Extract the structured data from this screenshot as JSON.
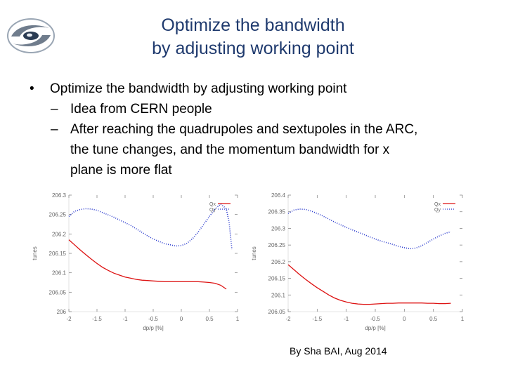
{
  "slide": {
    "title_line1": "Optimize the bandwidth",
    "title_line2": "by adjusting working point",
    "bullet_main": "Optimize the bandwidth by adjusting working point",
    "sub1": "Idea from CERN people",
    "sub2_line1": "After reaching the quadrupoles and sextupoles in the ARC,",
    "sub2_line2": "the tune changes, and the momentum bandwidth for x",
    "sub2_line3": "plane is more flat",
    "credit": "By Sha BAI, Aug 2014",
    "bullet_glyph": "•",
    "dash_glyph": "–",
    "logo_icon": "institute-logo-swirl"
  },
  "colors": {
    "title": "#1f3a6e",
    "qx": "#dd1111",
    "qy": "#2233cc",
    "axis": "#666666"
  },
  "chart_data": [
    {
      "type": "line",
      "xlabel": "dp/p [%]",
      "ylabel": "tunes",
      "xlim": [
        -2,
        1
      ],
      "ylim": [
        206,
        206.3
      ],
      "xticks": [
        "-2",
        "-1.5",
        "-1",
        "-0.5",
        "0",
        "0.5",
        "1"
      ],
      "yticks": [
        "206",
        "206.05",
        "206.1",
        "206.15",
        "206.2",
        "206.25",
        "206.3"
      ],
      "legend_position": "top-right",
      "series": [
        {
          "name": "Qx",
          "style": "solid",
          "color": "#dd1111",
          "x": [
            -2.0,
            -1.9,
            -1.8,
            -1.7,
            -1.6,
            -1.5,
            -1.4,
            -1.3,
            -1.2,
            -1.1,
            -1.0,
            -0.9,
            -0.8,
            -0.7,
            -0.6,
            -0.5,
            -0.4,
            -0.3,
            -0.2,
            -0.1,
            0.0,
            0.1,
            0.2,
            0.3,
            0.4,
            0.5,
            0.6,
            0.7,
            0.8
          ],
          "y": [
            206.185,
            206.172,
            206.159,
            206.147,
            206.135,
            206.124,
            206.114,
            206.106,
            206.099,
            206.094,
            206.089,
            206.086,
            206.083,
            206.081,
            206.08,
            206.079,
            206.078,
            206.077,
            206.077,
            206.077,
            206.077,
            206.077,
            206.077,
            206.077,
            206.076,
            206.075,
            206.073,
            206.068,
            206.058
          ]
        },
        {
          "name": "Qy",
          "style": "dotted",
          "color": "#2233cc",
          "x": [
            -2.0,
            -1.9,
            -1.8,
            -1.7,
            -1.6,
            -1.5,
            -1.4,
            -1.3,
            -1.2,
            -1.1,
            -1.0,
            -0.9,
            -0.8,
            -0.7,
            -0.6,
            -0.5,
            -0.4,
            -0.3,
            -0.2,
            -0.1,
            0.0,
            0.1,
            0.2,
            0.3,
            0.4,
            0.5,
            0.6,
            0.7,
            0.8,
            0.85,
            0.9
          ],
          "y": [
            206.245,
            206.258,
            206.263,
            206.265,
            206.264,
            206.261,
            206.255,
            206.249,
            206.243,
            206.236,
            206.229,
            206.222,
            206.213,
            206.204,
            206.195,
            206.187,
            206.181,
            206.175,
            206.172,
            206.169,
            206.17,
            206.176,
            206.188,
            206.205,
            206.225,
            206.245,
            206.264,
            206.277,
            206.265,
            206.23,
            206.16
          ]
        }
      ]
    },
    {
      "type": "line",
      "xlabel": "dp/p [%]",
      "ylabel": "tunes",
      "xlim": [
        -2,
        1
      ],
      "ylim": [
        206.05,
        206.4
      ],
      "xticks": [
        "-2",
        "-1.5",
        "-1",
        "-0.5",
        "0",
        "0.5",
        "1"
      ],
      "yticks": [
        "206.05",
        "206.1",
        "206.15",
        "206.2",
        "206.25",
        "206.3",
        "206.35",
        "206.4"
      ],
      "legend_position": "top-right",
      "series": [
        {
          "name": "Qx",
          "style": "solid",
          "color": "#dd1111",
          "x": [
            -2.0,
            -1.9,
            -1.8,
            -1.7,
            -1.6,
            -1.5,
            -1.4,
            -1.3,
            -1.2,
            -1.1,
            -1.0,
            -0.9,
            -0.8,
            -0.7,
            -0.6,
            -0.5,
            -0.4,
            -0.3,
            -0.2,
            -0.1,
            0.0,
            0.1,
            0.2,
            0.3,
            0.4,
            0.5,
            0.6,
            0.7,
            0.8
          ],
          "y": [
            206.191,
            206.176,
            206.161,
            206.147,
            206.134,
            206.122,
            206.111,
            206.1,
            206.091,
            206.084,
            206.079,
            206.075,
            206.073,
            206.072,
            206.072,
            206.073,
            206.074,
            206.075,
            206.075,
            206.076,
            206.076,
            206.076,
            206.076,
            206.076,
            206.075,
            206.075,
            206.074,
            206.074,
            206.075
          ]
        },
        {
          "name": "Qy",
          "style": "dotted",
          "color": "#2233cc",
          "x": [
            -2.0,
            -1.9,
            -1.8,
            -1.7,
            -1.6,
            -1.5,
            -1.4,
            -1.3,
            -1.2,
            -1.1,
            -1.0,
            -0.9,
            -0.8,
            -0.7,
            -0.6,
            -0.5,
            -0.4,
            -0.3,
            -0.2,
            -0.1,
            0.0,
            0.1,
            0.2,
            0.3,
            0.4,
            0.5,
            0.6,
            0.7,
            0.8
          ],
          "y": [
            206.345,
            206.355,
            206.358,
            206.357,
            206.352,
            206.345,
            206.337,
            206.328,
            206.319,
            206.311,
            206.303,
            206.296,
            206.289,
            206.282,
            206.275,
            206.268,
            206.262,
            206.257,
            206.252,
            206.246,
            206.242,
            206.239,
            206.241,
            206.248,
            206.258,
            206.268,
            206.277,
            206.285,
            206.29
          ]
        }
      ]
    }
  ]
}
